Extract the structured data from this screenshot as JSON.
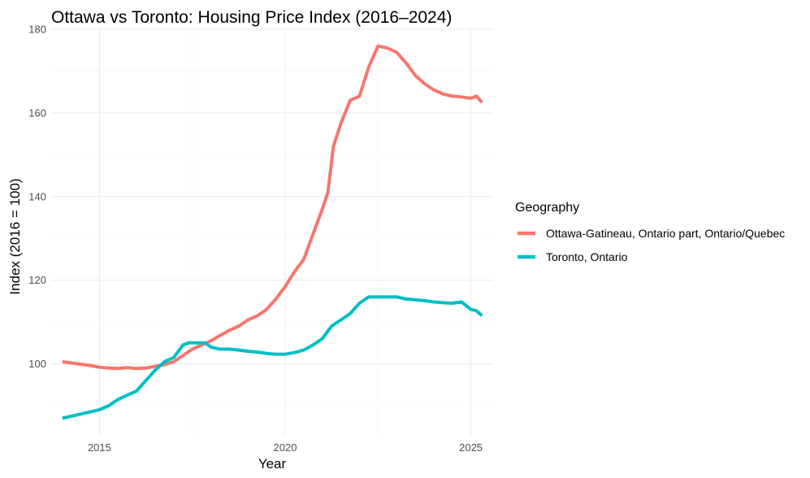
{
  "chart_data": {
    "type": "line",
    "title": "Ottawa vs Toronto: Housing Price Index (2016–2024)",
    "xlabel": "Year",
    "ylabel": "Index (2016 = 100)",
    "xlim": [
      2013.7,
      2025.6
    ],
    "ylim": [
      83,
      180
    ],
    "x_ticks": [
      2015,
      2020,
      2025
    ],
    "y_ticks": [
      100,
      120,
      140,
      160,
      180
    ],
    "grid": true,
    "legend": {
      "title": "Geography",
      "position": "right"
    },
    "series": [
      {
        "name": "Ottawa-Gatineau, Ontario part, Ontario/Quebec",
        "color": "#F8766D",
        "x": [
          2014.0,
          2014.25,
          2014.5,
          2014.75,
          2015.0,
          2015.25,
          2015.5,
          2015.75,
          2016.0,
          2016.25,
          2016.5,
          2016.75,
          2017.0,
          2017.25,
          2017.5,
          2017.75,
          2018.0,
          2018.25,
          2018.5,
          2018.75,
          2019.0,
          2019.25,
          2019.5,
          2019.75,
          2020.0,
          2020.25,
          2020.5,
          2020.75,
          2021.0,
          2021.15,
          2021.3,
          2021.5,
          2021.75,
          2022.0,
          2022.25,
          2022.5,
          2022.75,
          2023.0,
          2023.25,
          2023.5,
          2023.75,
          2024.0,
          2024.25,
          2024.5,
          2024.75,
          2025.0,
          2025.15,
          2025.3
        ],
        "values": [
          100.5,
          100.2,
          99.9,
          99.6,
          99.2,
          99.0,
          98.9,
          99.1,
          98.9,
          99.0,
          99.4,
          99.8,
          100.5,
          102.0,
          103.5,
          104.5,
          105.5,
          106.8,
          108.0,
          109.0,
          110.5,
          111.5,
          113.0,
          115.5,
          118.5,
          122.0,
          125.0,
          131.0,
          137.0,
          141.0,
          152.0,
          157.5,
          163.0,
          164.0,
          171.0,
          176.0,
          175.5,
          174.5,
          172.0,
          169.0,
          167.0,
          165.5,
          164.5,
          164.0,
          163.8,
          163.5,
          164.0,
          162.5
        ]
      },
      {
        "name": "Toronto, Ontario",
        "color": "#00BFC4",
        "x": [
          2014.0,
          2014.25,
          2014.5,
          2014.75,
          2015.0,
          2015.25,
          2015.5,
          2015.75,
          2016.0,
          2016.25,
          2016.5,
          2016.75,
          2017.0,
          2017.25,
          2017.4,
          2017.6,
          2017.85,
          2018.0,
          2018.25,
          2018.5,
          2018.75,
          2019.0,
          2019.25,
          2019.5,
          2019.75,
          2020.0,
          2020.25,
          2020.5,
          2020.75,
          2021.0,
          2021.25,
          2021.5,
          2021.75,
          2022.0,
          2022.25,
          2022.5,
          2022.75,
          2023.0,
          2023.25,
          2023.5,
          2023.75,
          2024.0,
          2024.25,
          2024.5,
          2024.75,
          2025.0,
          2025.15,
          2025.3
        ],
        "values": [
          87.0,
          87.5,
          88.0,
          88.5,
          89.0,
          90.0,
          91.5,
          92.5,
          93.5,
          96.0,
          98.5,
          100.5,
          101.5,
          104.5,
          105.0,
          105.0,
          105.0,
          104.0,
          103.5,
          103.5,
          103.3,
          103.0,
          102.8,
          102.5,
          102.3,
          102.3,
          102.7,
          103.3,
          104.5,
          106.0,
          109.0,
          110.5,
          112.0,
          114.5,
          116.0,
          116.0,
          116.0,
          116.0,
          115.5,
          115.3,
          115.1,
          114.8,
          114.6,
          114.5,
          114.8,
          113.0,
          112.7,
          111.5
        ]
      }
    ]
  }
}
